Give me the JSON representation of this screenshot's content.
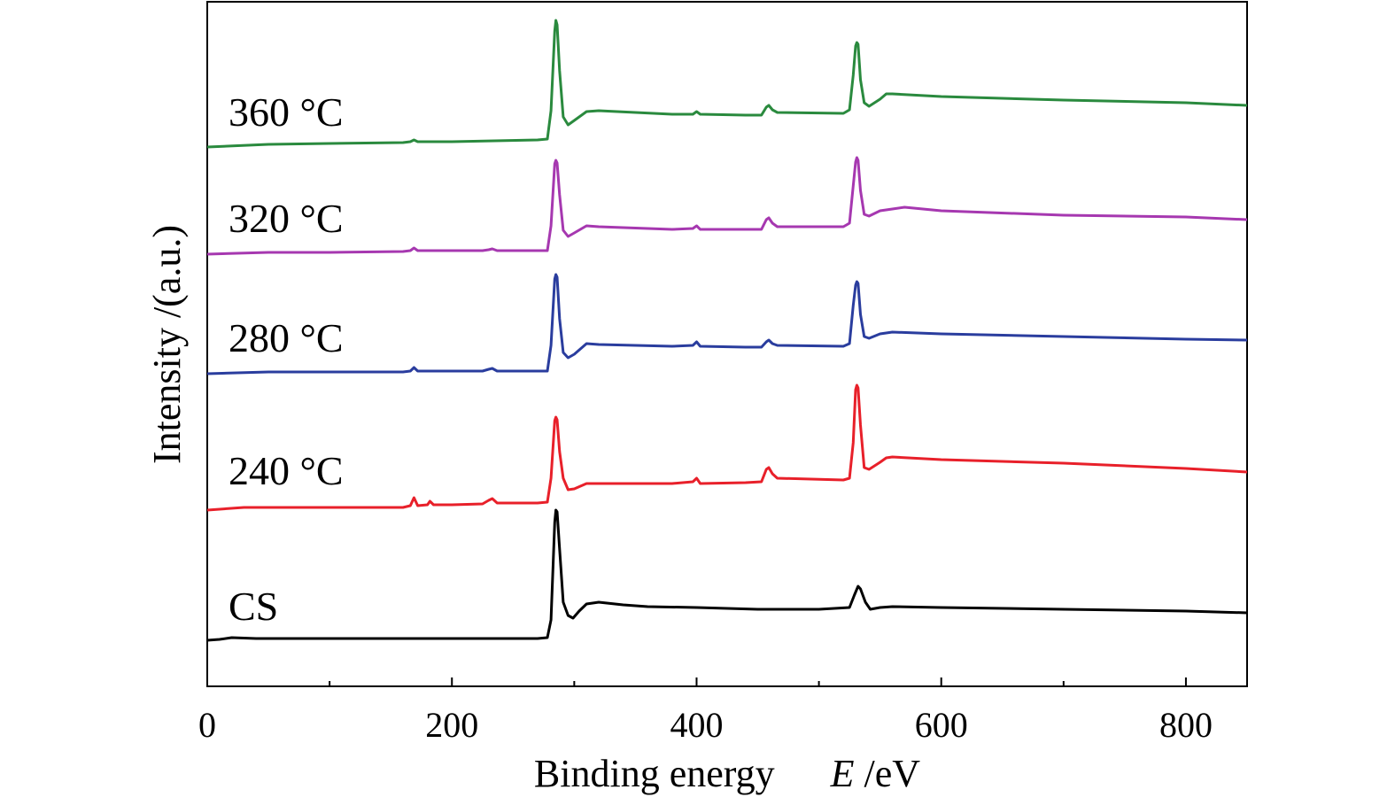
{
  "chart_data": {
    "type": "line",
    "title": "",
    "xlabel_main": "Binding energy",
    "xlabel_symbol": "E",
    "xlabel_unit": " /eV",
    "ylabel": "Intensity /(a.u.)",
    "xlim": [
      0,
      850
    ],
    "x_ticks": [
      0,
      200,
      400,
      600,
      800
    ],
    "x_minor_ticks": [
      100,
      300,
      500,
      700
    ],
    "y_tick_labels": false,
    "grid": false,
    "legend": "inline labels at left of each trace",
    "series": [
      {
        "name": "CS",
        "color": "#000000",
        "points": [
          [
            0,
            723
          ],
          [
            10,
            722
          ],
          [
            20,
            720
          ],
          [
            40,
            721
          ],
          [
            100,
            721
          ],
          [
            200,
            721
          ],
          [
            270,
            721
          ],
          [
            278,
            720
          ],
          [
            281,
            700
          ],
          [
            284,
            590
          ],
          [
            285,
            576
          ],
          [
            286,
            578
          ],
          [
            288,
            620
          ],
          [
            291,
            680
          ],
          [
            295,
            695
          ],
          [
            299,
            698
          ],
          [
            304,
            690
          ],
          [
            310,
            682
          ],
          [
            320,
            680
          ],
          [
            340,
            683
          ],
          [
            360,
            685
          ],
          [
            400,
            686
          ],
          [
            450,
            688
          ],
          [
            500,
            688
          ],
          [
            525,
            686
          ],
          [
            529,
            672
          ],
          [
            532,
            662
          ],
          [
            534,
            665
          ],
          [
            538,
            680
          ],
          [
            542,
            688
          ],
          [
            550,
            686
          ],
          [
            560,
            685
          ],
          [
            600,
            686
          ],
          [
            700,
            688
          ],
          [
            800,
            690
          ],
          [
            850,
            692
          ]
        ]
      },
      {
        "name": "240 °C",
        "color": "#e8202a",
        "points": [
          [
            0,
            576
          ],
          [
            30,
            573
          ],
          [
            60,
            573
          ],
          [
            100,
            573
          ],
          [
            160,
            573
          ],
          [
            166,
            571
          ],
          [
            169,
            562
          ],
          [
            172,
            571
          ],
          [
            180,
            570
          ],
          [
            182,
            566
          ],
          [
            185,
            570
          ],
          [
            200,
            570
          ],
          [
            225,
            569
          ],
          [
            230,
            565
          ],
          [
            233,
            563
          ],
          [
            237,
            568
          ],
          [
            250,
            568
          ],
          [
            270,
            568
          ],
          [
            278,
            567
          ],
          [
            281,
            540
          ],
          [
            284,
            475
          ],
          [
            285,
            471
          ],
          [
            286,
            474
          ],
          [
            288,
            510
          ],
          [
            291,
            540
          ],
          [
            295,
            553
          ],
          [
            300,
            552
          ],
          [
            310,
            546
          ],
          [
            330,
            546
          ],
          [
            380,
            546
          ],
          [
            397,
            544
          ],
          [
            400,
            540
          ],
          [
            403,
            546
          ],
          [
            440,
            545
          ],
          [
            453,
            544
          ],
          [
            457,
            530
          ],
          [
            459,
            528
          ],
          [
            462,
            535
          ],
          [
            466,
            540
          ],
          [
            520,
            542
          ],
          [
            525,
            540
          ],
          [
            528,
            500
          ],
          [
            530,
            440
          ],
          [
            531,
            435
          ],
          [
            532,
            438
          ],
          [
            534,
            480
          ],
          [
            537,
            528
          ],
          [
            541,
            530
          ],
          [
            550,
            522
          ],
          [
            555,
            517
          ],
          [
            560,
            516
          ],
          [
            600,
            519
          ],
          [
            700,
            523
          ],
          [
            800,
            529
          ],
          [
            850,
            533
          ]
        ]
      },
      {
        "name": "280 °C",
        "color": "#2a3d9e",
        "points": [
          [
            0,
            422
          ],
          [
            50,
            420
          ],
          [
            100,
            420
          ],
          [
            160,
            420
          ],
          [
            166,
            419
          ],
          [
            169,
            415
          ],
          [
            172,
            419
          ],
          [
            200,
            419
          ],
          [
            225,
            419
          ],
          [
            230,
            417
          ],
          [
            233,
            416
          ],
          [
            237,
            419
          ],
          [
            270,
            419
          ],
          [
            278,
            419
          ],
          [
            281,
            390
          ],
          [
            284,
            315
          ],
          [
            285,
            310
          ],
          [
            286,
            313
          ],
          [
            288,
            360
          ],
          [
            291,
            398
          ],
          [
            295,
            404
          ],
          [
            300,
            400
          ],
          [
            310,
            388
          ],
          [
            320,
            389
          ],
          [
            380,
            391
          ],
          [
            397,
            390
          ],
          [
            400,
            386
          ],
          [
            403,
            391
          ],
          [
            440,
            392
          ],
          [
            453,
            392
          ],
          [
            457,
            386
          ],
          [
            459,
            384
          ],
          [
            462,
            388
          ],
          [
            466,
            390
          ],
          [
            520,
            391
          ],
          [
            525,
            388
          ],
          [
            528,
            345
          ],
          [
            530,
            322
          ],
          [
            531,
            318
          ],
          [
            532,
            320
          ],
          [
            534,
            355
          ],
          [
            537,
            380
          ],
          [
            541,
            382
          ],
          [
            550,
            377
          ],
          [
            560,
            375
          ],
          [
            600,
            377
          ],
          [
            700,
            380
          ],
          [
            800,
            383
          ],
          [
            850,
            384
          ]
        ]
      },
      {
        "name": "320 °C",
        "color": "#a638b0",
        "points": [
          [
            0,
            287
          ],
          [
            50,
            285
          ],
          [
            100,
            285
          ],
          [
            160,
            284
          ],
          [
            166,
            283
          ],
          [
            169,
            280
          ],
          [
            172,
            283
          ],
          [
            200,
            283
          ],
          [
            225,
            283
          ],
          [
            230,
            282
          ],
          [
            233,
            281
          ],
          [
            237,
            283
          ],
          [
            270,
            283
          ],
          [
            278,
            283
          ],
          [
            281,
            255
          ],
          [
            284,
            185
          ],
          [
            285,
            181
          ],
          [
            286,
            184
          ],
          [
            288,
            220
          ],
          [
            291,
            260
          ],
          [
            295,
            267
          ],
          [
            300,
            263
          ],
          [
            310,
            255
          ],
          [
            320,
            256
          ],
          [
            380,
            259
          ],
          [
            397,
            258
          ],
          [
            400,
            255
          ],
          [
            403,
            259
          ],
          [
            440,
            259
          ],
          [
            453,
            259
          ],
          [
            457,
            248
          ],
          [
            459,
            246
          ],
          [
            462,
            252
          ],
          [
            466,
            256
          ],
          [
            520,
            256
          ],
          [
            525,
            252
          ],
          [
            528,
            210
          ],
          [
            530,
            183
          ],
          [
            531,
            178
          ],
          [
            532,
            181
          ],
          [
            534,
            215
          ],
          [
            537,
            242
          ],
          [
            541,
            244
          ],
          [
            550,
            238
          ],
          [
            560,
            236
          ],
          [
            570,
            234
          ],
          [
            600,
            238
          ],
          [
            700,
            243
          ],
          [
            800,
            245
          ],
          [
            850,
            248
          ]
        ]
      },
      {
        "name": "360 °C",
        "color": "#2a8a3e",
        "points": [
          [
            0,
            166
          ],
          [
            50,
            163
          ],
          [
            100,
            162
          ],
          [
            160,
            161
          ],
          [
            166,
            160
          ],
          [
            169,
            158
          ],
          [
            172,
            160
          ],
          [
            200,
            160
          ],
          [
            270,
            158
          ],
          [
            278,
            157
          ],
          [
            281,
            125
          ],
          [
            284,
            35
          ],
          [
            285,
            23
          ],
          [
            286,
            28
          ],
          [
            288,
            80
          ],
          [
            291,
            132
          ],
          [
            295,
            141
          ],
          [
            300,
            136
          ],
          [
            310,
            126
          ],
          [
            320,
            125
          ],
          [
            380,
            129
          ],
          [
            397,
            129
          ],
          [
            400,
            126
          ],
          [
            403,
            129
          ],
          [
            440,
            130
          ],
          [
            453,
            130
          ],
          [
            457,
            121
          ],
          [
            459,
            119
          ],
          [
            462,
            124
          ],
          [
            466,
            127
          ],
          [
            520,
            128
          ],
          [
            525,
            124
          ],
          [
            528,
            85
          ],
          [
            530,
            52
          ],
          [
            531,
            48
          ],
          [
            532,
            50
          ],
          [
            534,
            90
          ],
          [
            537,
            116
          ],
          [
            541,
            120
          ],
          [
            550,
            112
          ],
          [
            555,
            106
          ],
          [
            560,
            106
          ],
          [
            600,
            109
          ],
          [
            700,
            113
          ],
          [
            800,
            116
          ],
          [
            850,
            119
          ]
        ]
      }
    ]
  }
}
